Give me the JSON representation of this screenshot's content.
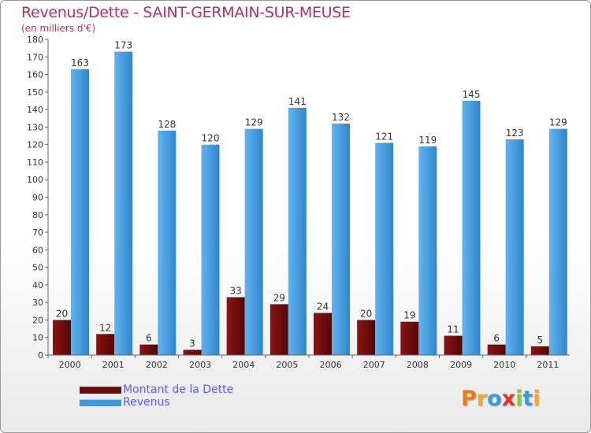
{
  "colors": {
    "dette": "#6b0a0a",
    "revenus": "#3d9ae0",
    "title": "#b0306a",
    "legend_text": "#5a5aff",
    "axis_text": "#333333"
  },
  "logo": {
    "text": "Proxiti",
    "letters": [
      "P",
      "r",
      "o",
      "x",
      "i",
      "t",
      "i"
    ]
  },
  "chart_data": {
    "type": "bar",
    "title": "Revenus/Dette - SAINT-GERMAIN-SUR-MEUSE",
    "subtitle": "(en milliers d'€)",
    "categories": [
      "2000",
      "2001",
      "2002",
      "2003",
      "2004",
      "2005",
      "2006",
      "2007",
      "2008",
      "2009",
      "2010",
      "2011"
    ],
    "series": [
      {
        "name": "Montant de la Dette",
        "color": "#6b0a0a",
        "values": [
          20,
          12,
          6,
          3,
          33,
          29,
          24,
          20,
          19,
          11,
          6,
          5
        ]
      },
      {
        "name": "Revenus",
        "color": "#3d9ae0",
        "values": [
          163,
          173,
          128,
          120,
          129,
          141,
          132,
          121,
          119,
          145,
          123,
          129
        ]
      }
    ],
    "ylim": [
      0,
      180
    ],
    "yticks": [
      0,
      10,
      20,
      30,
      40,
      50,
      60,
      70,
      80,
      90,
      100,
      110,
      120,
      130,
      140,
      150,
      160,
      170,
      180
    ],
    "grid": false,
    "legend": "bottom-left"
  }
}
